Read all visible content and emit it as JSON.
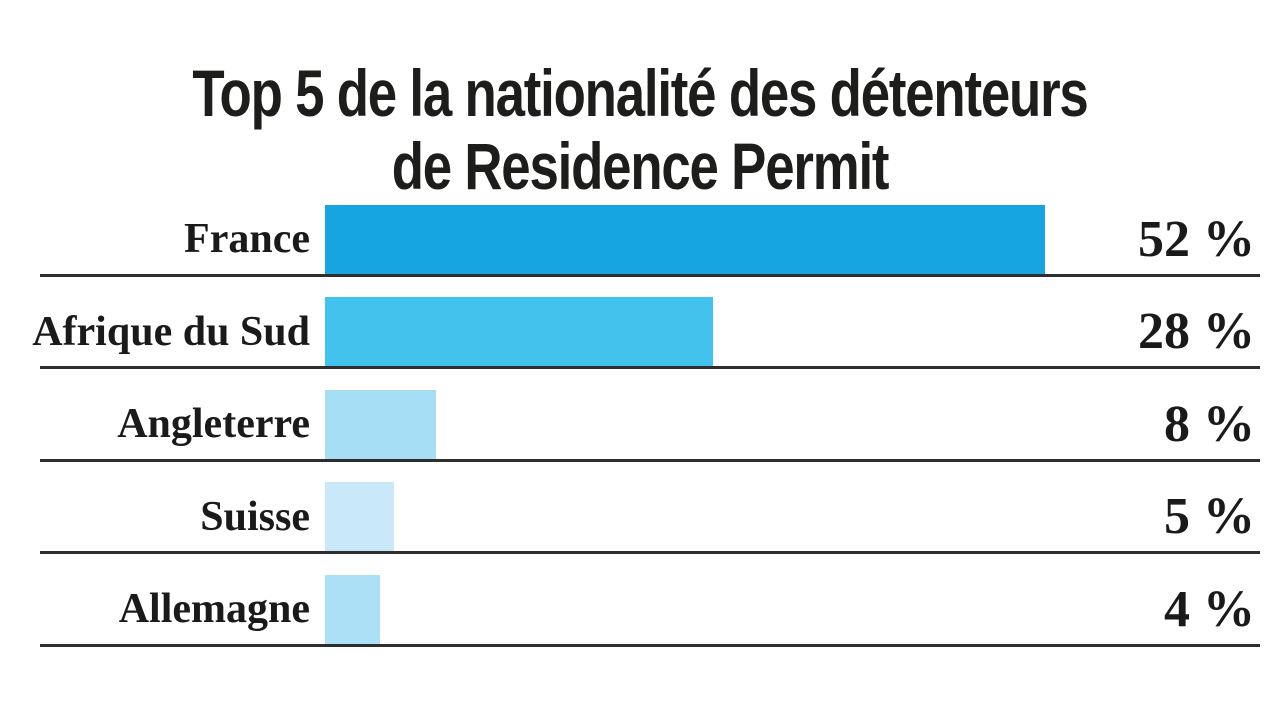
{
  "page": {
    "background": "#ffffff",
    "text_color": "#1a1a1a",
    "separator_color": "#2e2e2e"
  },
  "chart_data": {
    "type": "bar",
    "orientation": "horizontal",
    "title": "Top 5 de la nationalité des détenteurs de Residence Permit",
    "title_lines": [
      "Top 5 de la nationalité des détenteurs",
      "de Residence Permit"
    ],
    "categories": [
      "France",
      "Afrique du Sud",
      "Angleterre",
      "Suisse",
      "Allemagne"
    ],
    "values": [
      52,
      28,
      8,
      5,
      4
    ],
    "value_labels": [
      "52 %",
      "28 %",
      "8 %",
      "5 %",
      "4 %"
    ],
    "unit": "%",
    "bar_colors": [
      "#16a5e0",
      "#41c3ee",
      "#a6def5",
      "#c9e9fa",
      "#abe0f6"
    ],
    "xlim": [
      0,
      52
    ],
    "legend": "none",
    "grid": "horizontal-row-separator-lines",
    "xlabel": "",
    "ylabel": ""
  }
}
